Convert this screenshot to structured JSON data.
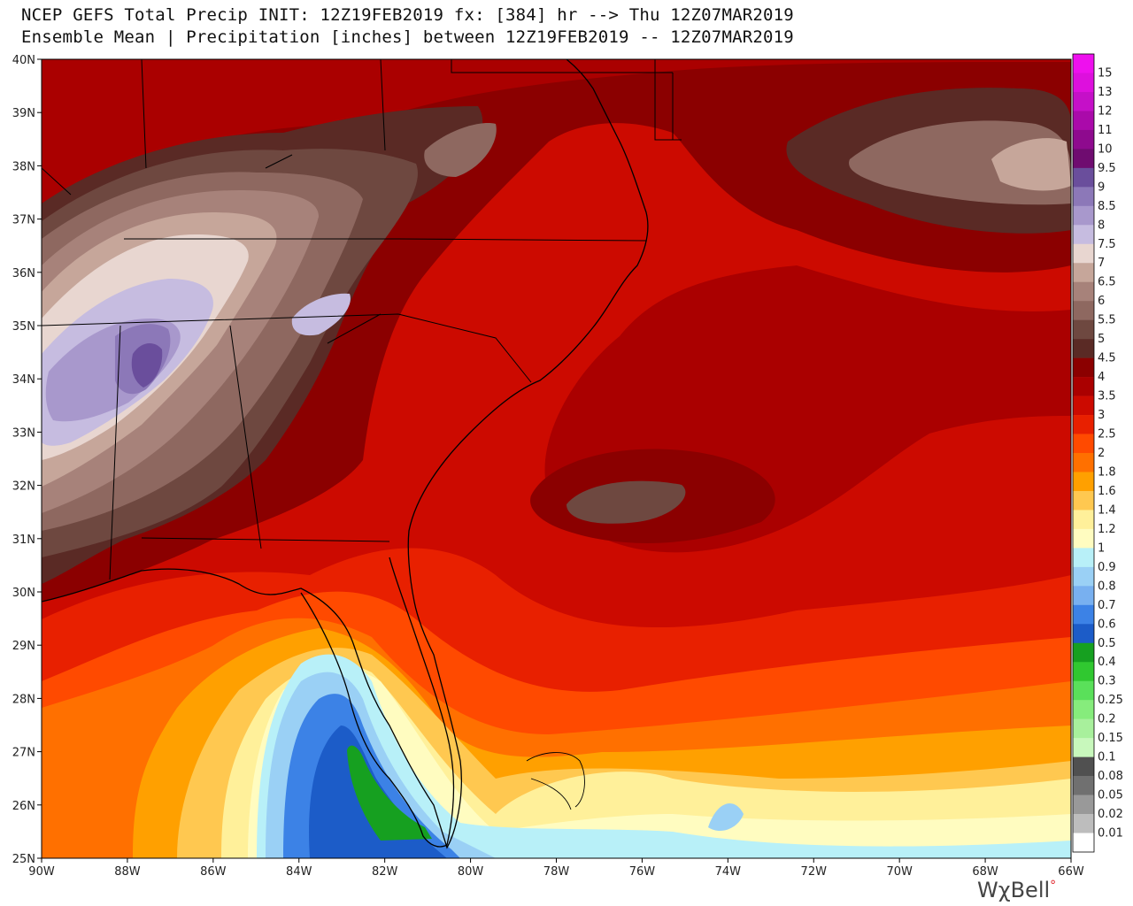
{
  "header": {
    "line1": "NCEP GEFS Total Precip INIT: 12Z19FEB2019 fx: [384] hr --> Thu 12Z07MAR2019",
    "line2": "Ensemble Mean | Precipitation [inches] between 12Z19FEB2019 -- 12Z07MAR2019"
  },
  "branding": {
    "name": "WχBell",
    "mark": "°"
  },
  "chart_data": {
    "type": "heatmap",
    "x_axis_labels": [
      "90W",
      "88W",
      "86W",
      "84W",
      "82W",
      "80W",
      "78W",
      "76W",
      "74W",
      "72W",
      "70W",
      "68W",
      "66W"
    ],
    "y_axis_labels": [
      "40N",
      "39N",
      "38N",
      "37N",
      "36N",
      "35N",
      "34N",
      "33N",
      "32N",
      "31N",
      "30N",
      "29N",
      "28N",
      "27N",
      "26N",
      "25N"
    ],
    "lon_range": [
      -90,
      -66
    ],
    "lat_range": [
      25,
      40
    ],
    "legend": {
      "title": "",
      "levels": [
        {
          "label": "15",
          "color": "#ee10ee"
        },
        {
          "label": "13",
          "color": "#dd10dd"
        },
        {
          "label": "12",
          "color": "#c510c8"
        },
        {
          "label": "11",
          "color": "#aa0aaa"
        },
        {
          "label": "10",
          "color": "#8e0a8e"
        },
        {
          "label": "9.5",
          "color": "#6f0c70"
        },
        {
          "label": "9",
          "color": "#6a4e9c"
        },
        {
          "label": "8.5",
          "color": "#8c78b8"
        },
        {
          "label": "8",
          "color": "#a898cc"
        },
        {
          "label": "7.5",
          "color": "#c6bce0"
        },
        {
          "label": "7",
          "color": "#e8d6d0"
        },
        {
          "label": "6.5",
          "color": "#c6a69a"
        },
        {
          "label": "6",
          "color": "#a7827a"
        },
        {
          "label": "5.5",
          "color": "#8e6860"
        },
        {
          "label": "5",
          "color": "#6e4840"
        },
        {
          "label": "4.5",
          "color": "#5a2a25"
        },
        {
          "label": "4",
          "color": "#8b0000"
        },
        {
          "label": "3.5",
          "color": "#aa0000"
        },
        {
          "label": "3",
          "color": "#cc0a00"
        },
        {
          "label": "2.5",
          "color": "#e82000"
        },
        {
          "label": "2",
          "color": "#ff4a00"
        },
        {
          "label": "1.8",
          "color": "#ff7000"
        },
        {
          "label": "1.6",
          "color": "#ffa000"
        },
        {
          "label": "1.4",
          "color": "#ffc850"
        },
        {
          "label": "1.2",
          "color": "#fff09a"
        },
        {
          "label": "1",
          "color": "#fffcc0"
        },
        {
          "label": "0.9",
          "color": "#b8f0f8"
        },
        {
          "label": "0.8",
          "color": "#9ad0f5"
        },
        {
          "label": "0.7",
          "color": "#78b0f0"
        },
        {
          "label": "0.6",
          "color": "#3c82e6"
        },
        {
          "label": "0.5",
          "color": "#1c5cc8"
        },
        {
          "label": "0.4",
          "color": "#16a020"
        },
        {
          "label": "0.3",
          "color": "#30c830"
        },
        {
          "label": "0.25",
          "color": "#5ae05a"
        },
        {
          "label": "0.2",
          "color": "#86ec7c"
        },
        {
          "label": "0.15",
          "color": "#a8f09c"
        },
        {
          "label": "0.1",
          "color": "#c8f8bc"
        },
        {
          "label": "0.08",
          "color": "#505050"
        },
        {
          "label": "0.05",
          "color": "#707070"
        },
        {
          "label": "0.02",
          "color": "#999999"
        },
        {
          "label": "0.01",
          "color": "#bdbdbd"
        },
        {
          "label": "",
          "color": "#ffffff"
        }
      ]
    }
  }
}
